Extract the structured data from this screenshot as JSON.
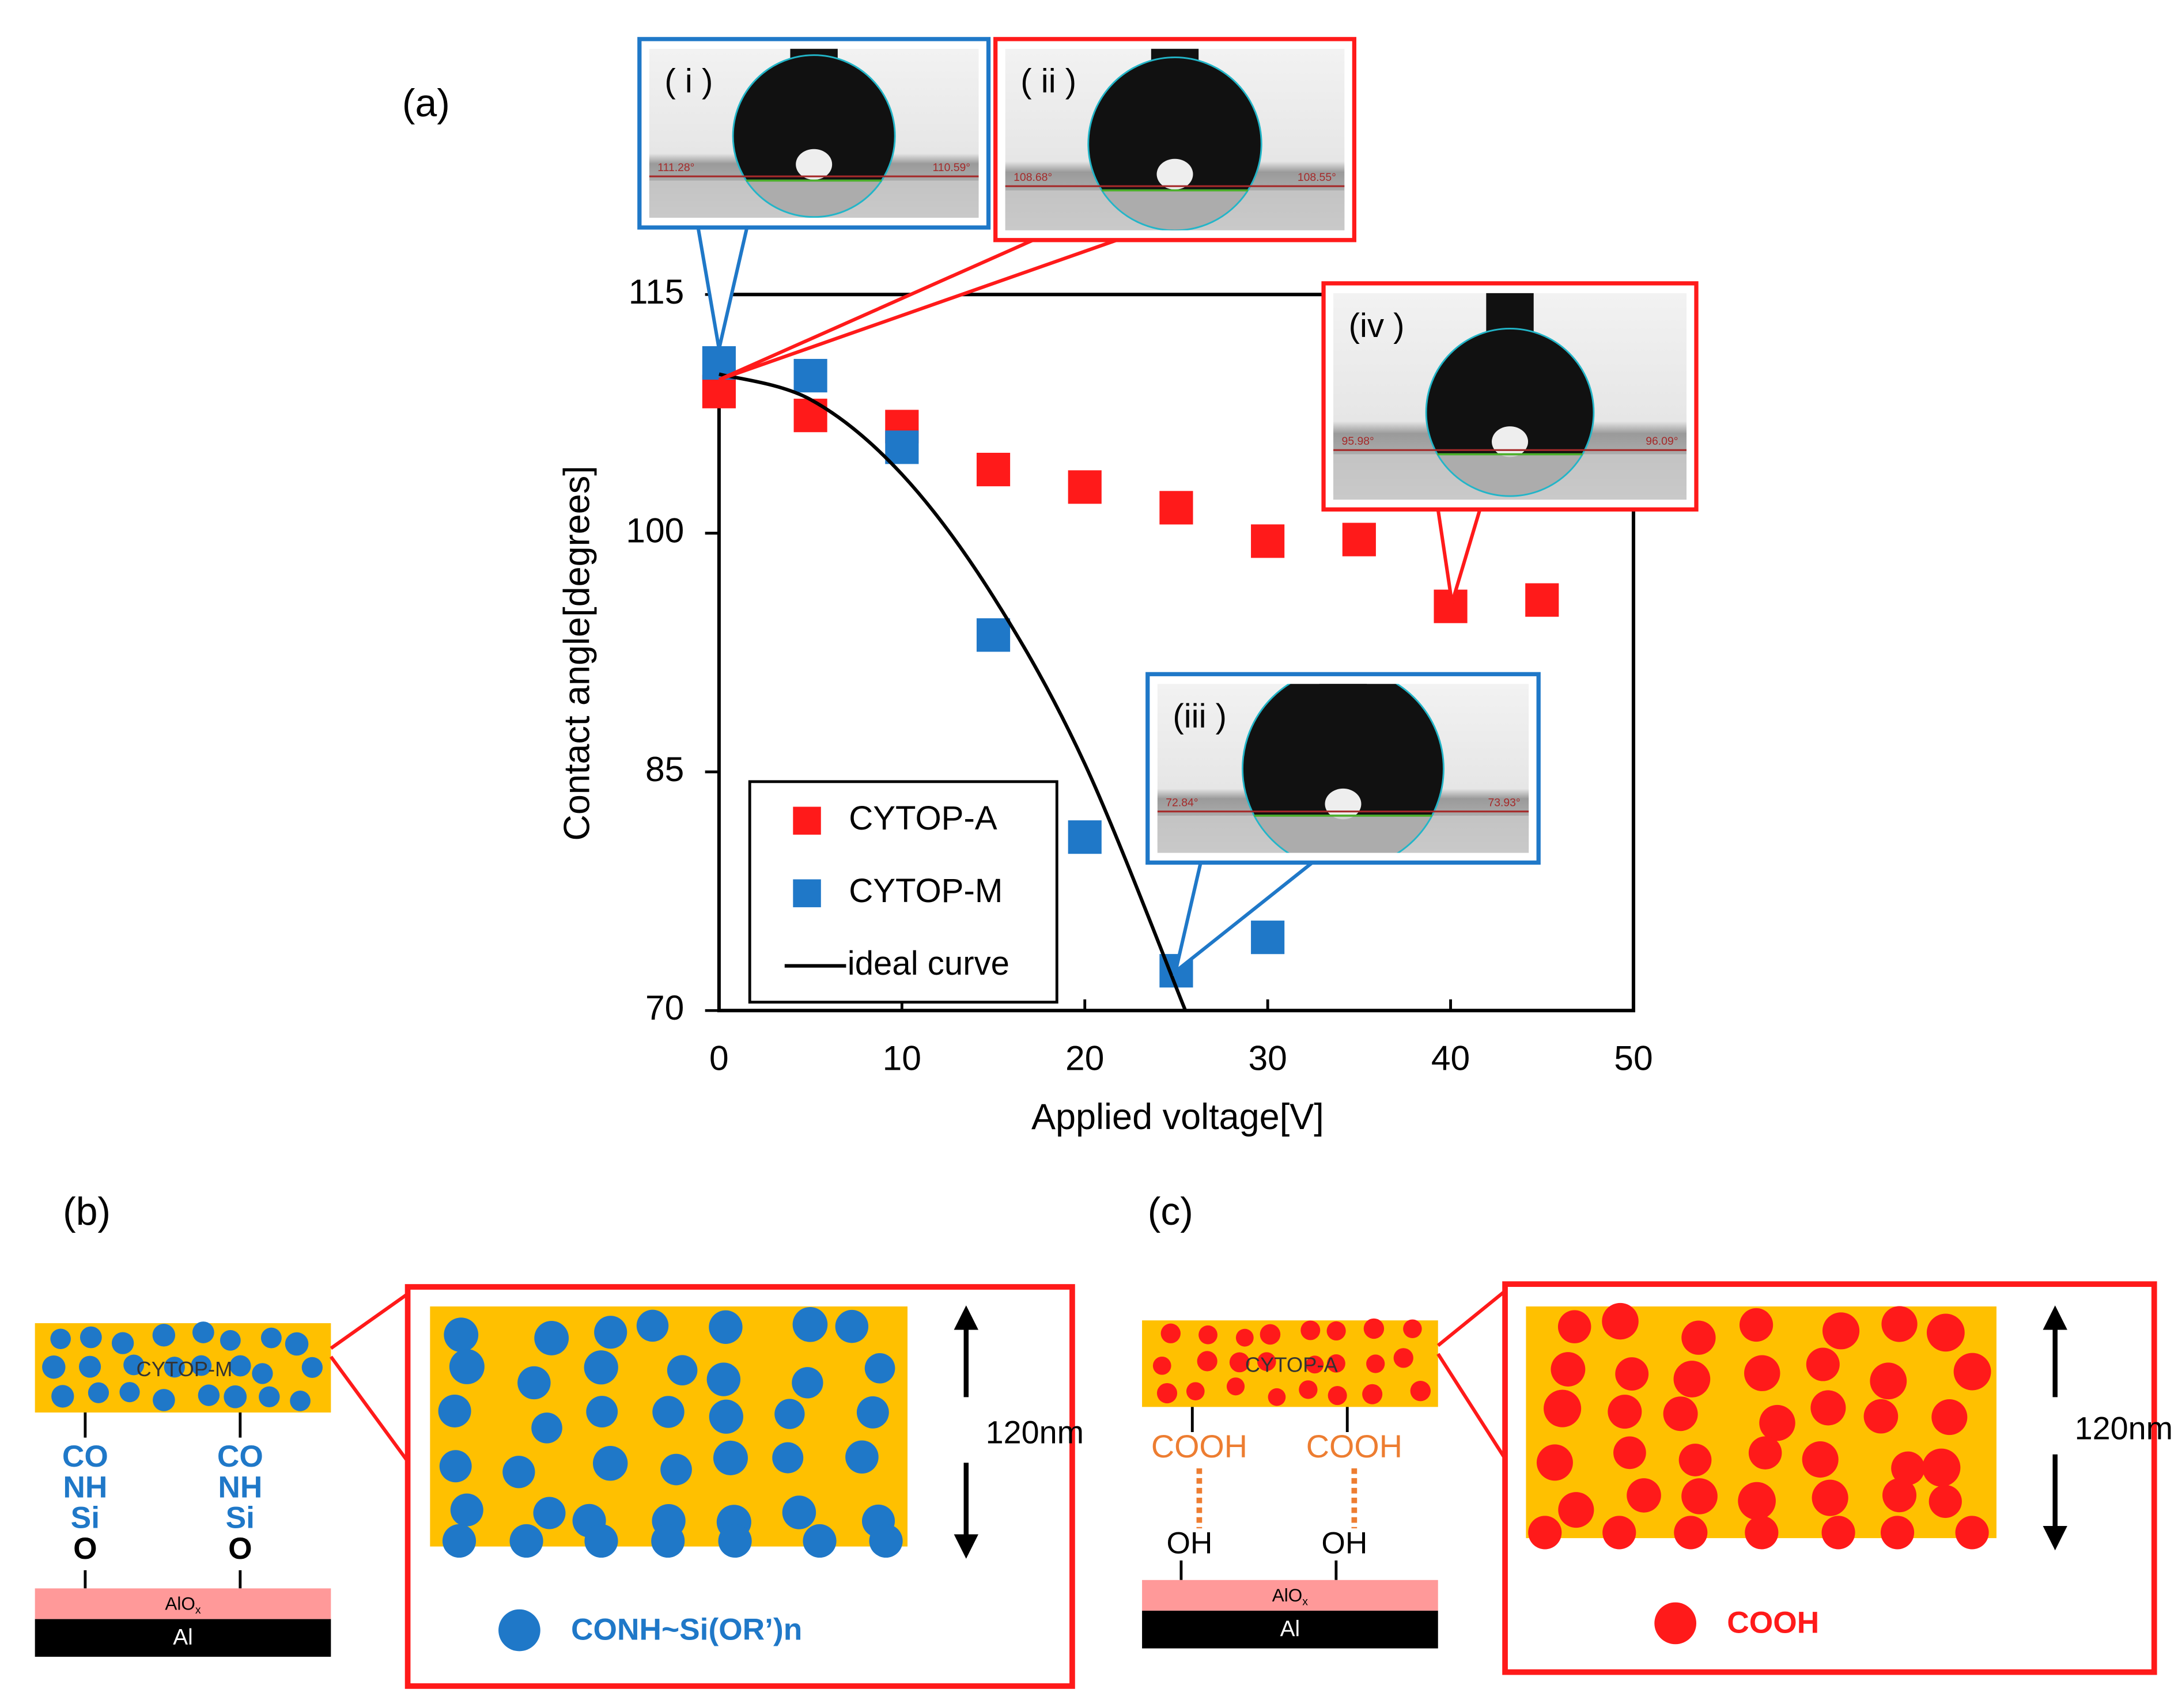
{
  "chart_data": {
    "type": "scatter",
    "panel_label": "(a)",
    "xlabel": "Applied voltage[V]",
    "ylabel": "Contact angle[degrees]",
    "xlim": [
      0,
      50
    ],
    "xticks": [
      0,
      10,
      20,
      30,
      40,
      50
    ],
    "ylim": [
      70,
      115
    ],
    "yticks": [
      70,
      85,
      100,
      115
    ],
    "series": [
      {
        "name": "CYTOP-A",
        "color": "#ff1a1a",
        "x": [
          0,
          5,
          10,
          15,
          20,
          25,
          30,
          35,
          40,
          45
        ],
        "values": [
          108.9,
          107.4,
          106.7,
          104.0,
          102.9,
          101.6,
          99.5,
          99.6,
          95.4,
          95.8
        ]
      },
      {
        "name": "CYTOP-M",
        "color": "#1f78c8",
        "x": [
          0,
          5,
          10,
          15,
          20,
          25,
          30
        ],
        "values": [
          110.7,
          109.9,
          105.4,
          93.6,
          80.9,
          72.5,
          74.6
        ]
      },
      {
        "name": "ideal curve",
        "type": "line",
        "color": "#000000",
        "x": [
          0,
          5,
          10,
          15,
          20,
          25.5
        ],
        "values": [
          110,
          108.4,
          103.7,
          96.0,
          85.5,
          70
        ]
      }
    ],
    "insets": [
      {
        "label": "( i )",
        "angles": [
          "111.28°",
          "110.59°"
        ]
      },
      {
        "label": "( ii )",
        "angles": [
          "108.68°",
          "108.55°"
        ]
      },
      {
        "label": "(iii )",
        "angles": [
          "72.84°",
          "73.93°"
        ]
      },
      {
        "label": "(iv )",
        "angles": [
          "95.98°",
          "96.09°"
        ]
      }
    ]
  },
  "diagram_b": {
    "label": "(b)",
    "layer": "CYTOP-M",
    "chain": [
      "CO",
      "NH",
      "Si",
      "O"
    ],
    "oxide": {
      "base": "AlO",
      "sub": "x"
    },
    "metal": "Al",
    "thickness": "120nm",
    "legend": "CONH~Si(OR’)n"
  },
  "diagram_c": {
    "label": "(c)",
    "layer": "CYTOP-A",
    "linker": "COOH",
    "surface": "OH",
    "oxide": {
      "base": "AlO",
      "sub": "x"
    },
    "metal": "Al",
    "thickness": "120nm",
    "legend": "COOH"
  }
}
